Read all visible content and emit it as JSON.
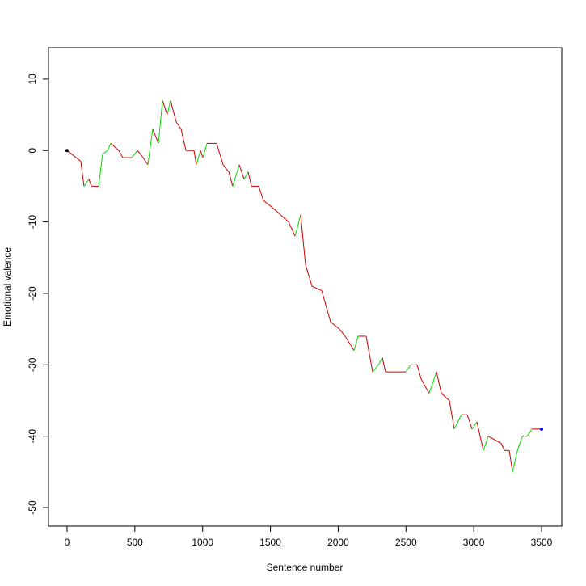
{
  "chart_data": {
    "type": "line",
    "x_label": "Sentence number",
    "y_label": "Emotional valence",
    "x": [
      0,
      101,
      125,
      161,
      179,
      233,
      262,
      298,
      322,
      382,
      411,
      477,
      519,
      561,
      596,
      632,
      674,
      704,
      739,
      763,
      805,
      841,
      877,
      936,
      954,
      984,
      1002,
      1032,
      1103,
      1151,
      1193,
      1222,
      1270,
      1306,
      1336,
      1360,
      1413,
      1449,
      1515,
      1574,
      1634,
      1682,
      1723,
      1759,
      1807,
      1878,
      1944,
      2010,
      2051,
      2117,
      2147,
      2206,
      2254,
      2296,
      2325,
      2349,
      2499,
      2534,
      2582,
      2612,
      2671,
      2725,
      2761,
      2820,
      2856,
      2910,
      2952,
      2987,
      3023,
      3071,
      3107,
      3202,
      3226,
      3262,
      3286,
      3322,
      3358,
      3393,
      3429,
      3500
    ],
    "values": [
      0,
      -1.5,
      -5,
      -4,
      -5,
      -5,
      -0.5,
      0,
      1,
      0,
      -1,
      -1,
      0,
      -1,
      -2,
      3,
      1,
      7,
      5,
      7,
      4,
      3,
      0,
      0,
      -2,
      0,
      -1,
      1,
      1,
      -2,
      -3,
      -5,
      -2,
      -4,
      -3,
      -5,
      -5,
      -7,
      -8,
      -9,
      -10,
      -12,
      -9,
      -16,
      -19,
      -19.6,
      -24,
      -25,
      -26,
      -28,
      -26,
      -26,
      -31,
      -30,
      -29,
      -31,
      -31,
      -30,
      -30,
      -32,
      -34,
      -31,
      -34,
      -35,
      -39,
      -37,
      -37,
      -39,
      -38,
      -42,
      -40,
      -41,
      -42,
      -42,
      -45,
      -42,
      -40,
      -40,
      -39,
      -39
    ],
    "up_color": "#00dd00",
    "down_color": "#cc0000",
    "points": [
      {
        "x": 0,
        "y": 0,
        "color": "#000000"
      },
      {
        "x": 3500,
        "y": -39,
        "color": "#0000ff"
      }
    ],
    "xlim": [
      -137,
      3649
    ],
    "ylim": [
      -52.6,
      14.4
    ],
    "xticks": [
      0,
      500,
      1000,
      1500,
      2000,
      2500,
      3000,
      3500
    ],
    "yticks": [
      -50,
      -40,
      -30,
      -20,
      -10,
      0,
      10
    ]
  }
}
